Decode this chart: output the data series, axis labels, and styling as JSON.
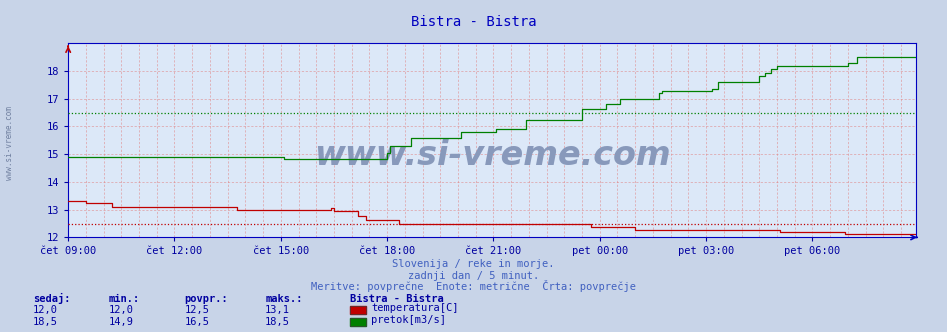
{
  "title": "Bistra - Bistra",
  "title_color": "#0000c0",
  "bg_color": "#c8d4e8",
  "plot_bg_color": "#dce8f8",
  "subtitle_lines": [
    "Slovenija / reke in morje.",
    "zadnji dan / 5 minut.",
    "Meritve: povprečne  Enote: metrične  Črta: povprečje"
  ],
  "subtitle_color": "#4060c0",
  "tick_color": "#0000a0",
  "xtick_labels": [
    "čet 09:00",
    "čet 12:00",
    "čet 15:00",
    "čet 18:00",
    "čet 21:00",
    "pet 00:00",
    "pet 03:00",
    "pet 06:00"
  ],
  "xtick_positions": [
    0,
    36,
    72,
    108,
    144,
    180,
    216,
    252
  ],
  "n_points": 288,
  "ylim": [
    12.0,
    19.0
  ],
  "yticks": [
    12,
    13,
    14,
    15,
    16,
    17,
    18
  ],
  "temp_color": "#c00000",
  "flow_color": "#008000",
  "avg_temp_color": "#c00000",
  "avg_flow_color": "#008000",
  "avg_temp": 12.5,
  "avg_flow": 16.5,
  "vgrid_color": "#e08080",
  "hgrid_color": "#e08080",
  "axis_color": "#0000c0",
  "border_color": "#8090b0",
  "watermark": "www.si-vreme.com",
  "watermark_color": "#8899bb",
  "legend_title": "Bistra - Bistra",
  "legend_entries": [
    {
      "label": "temperatura[C]",
      "color": "#c00000"
    },
    {
      "label": "pretok[m3/s]",
      "color": "#008000"
    }
  ],
  "stats_headers": [
    "sedaj:",
    "min.:",
    "povpr.:",
    "maks.:"
  ],
  "stats_temp": [
    "12,0",
    "12,0",
    "12,5",
    "13,1"
  ],
  "stats_flow": [
    "18,5",
    "14,9",
    "16,5",
    "18,5"
  ],
  "left_label": "www.si-vreme.com",
  "left_label_color": "#7080a0"
}
